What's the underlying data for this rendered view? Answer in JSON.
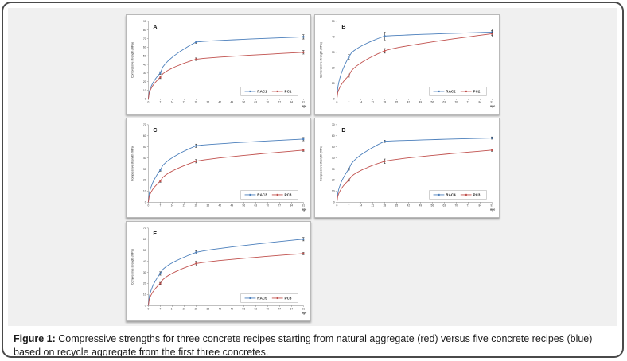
{
  "caption": {
    "label": "Figure 1:",
    "text": "Compressive strengths for three concrete recipes starting from natural aggregate (red) versus five concrete recipes (blue) based on recycle aggregate from the first three concretes."
  },
  "colors": {
    "rac_blue": "#4a7ebb",
    "pc_red": "#c0504d",
    "error_bar": "#222222",
    "axis": "#7f7f7f",
    "panel_bg": "#f0f0f0"
  },
  "chart_data": [
    {
      "id": "A",
      "type": "line",
      "title": "",
      "xlabel": "age",
      "ylabel": "Compressive strength (MPa)",
      "x": [
        0,
        7,
        28,
        91
      ],
      "xticks": [
        0,
        7,
        14,
        21,
        28,
        35,
        42,
        49,
        56,
        63,
        70,
        77,
        84,
        91
      ],
      "ylim": [
        0,
        90
      ],
      "ytick_step": 10,
      "grid": false,
      "legend_position": "bottom-right",
      "series": [
        {
          "name": "RAC1",
          "color": "#4a7ebb",
          "values": [
            0,
            30,
            66,
            72
          ],
          "errors": [
            0,
            1.5,
            1.5,
            2.5
          ]
        },
        {
          "name": "PC1",
          "color": "#c0504d",
          "values": [
            0,
            25,
            46,
            54
          ],
          "errors": [
            0,
            1.5,
            1.5,
            2
          ]
        }
      ]
    },
    {
      "id": "B",
      "type": "line",
      "title": "",
      "xlabel": "age",
      "ylabel": "Compressive strength (MPa)",
      "x": [
        0,
        7,
        28,
        91
      ],
      "xticks": [
        0,
        7,
        14,
        21,
        28,
        35,
        42,
        49,
        56,
        63,
        70,
        77,
        84,
        91
      ],
      "ylim": [
        0,
        50
      ],
      "ytick_step": 10,
      "grid": false,
      "legend_position": "bottom-right",
      "series": [
        {
          "name": "RAC2",
          "color": "#4a7ebb",
          "values": [
            0,
            27,
            40.5,
            43
          ],
          "errors": [
            0,
            1.5,
            2.5,
            2
          ]
        },
        {
          "name": "PC2",
          "color": "#c0504d",
          "values": [
            0,
            15,
            31,
            42
          ],
          "errors": [
            0,
            1,
            1.5,
            2
          ]
        }
      ]
    },
    {
      "id": "C",
      "type": "line",
      "title": "",
      "xlabel": "age",
      "ylabel": "Compressive strength (MPa)",
      "x": [
        0,
        7,
        28,
        91
      ],
      "xticks": [
        0,
        7,
        14,
        21,
        28,
        35,
        42,
        49,
        56,
        63,
        70,
        77,
        84,
        91
      ],
      "ylim": [
        0,
        70
      ],
      "ytick_step": 10,
      "grid": false,
      "legend_position": "bottom-right",
      "series": [
        {
          "name": "RAC3",
          "color": "#4a7ebb",
          "values": [
            0,
            29,
            51,
            57
          ],
          "errors": [
            0,
            1,
            1.5,
            1.5
          ]
        },
        {
          "name": "PC3",
          "color": "#c0504d",
          "values": [
            0,
            19,
            37,
            47
          ],
          "errors": [
            0,
            1,
            1.5,
            1
          ]
        }
      ]
    },
    {
      "id": "D",
      "type": "line",
      "title": "",
      "xlabel": "age",
      "ylabel": "Compressive strength (MPa)",
      "x": [
        0,
        7,
        28,
        91
      ],
      "xticks": [
        0,
        7,
        14,
        21,
        28,
        35,
        42,
        49,
        56,
        63,
        70,
        77,
        84,
        91
      ],
      "ylim": [
        0,
        70
      ],
      "ytick_step": 10,
      "grid": false,
      "legend_position": "bottom-right",
      "series": [
        {
          "name": "RAC4",
          "color": "#4a7ebb",
          "values": [
            0,
            30,
            55,
            58
          ],
          "errors": [
            0,
            1,
            1,
            1
          ]
        },
        {
          "name": "PC3",
          "color": "#c0504d",
          "values": [
            0,
            20,
            37,
            47
          ],
          "errors": [
            0,
            1,
            2,
            1
          ]
        }
      ]
    },
    {
      "id": "E",
      "type": "line",
      "title": "",
      "xlabel": "age",
      "ylabel": "Compressive strength (MPa)",
      "x": [
        0,
        7,
        28,
        91
      ],
      "xticks": [
        0,
        7,
        14,
        21,
        28,
        35,
        42,
        49,
        56,
        63,
        70,
        77,
        84,
        91
      ],
      "ylim": [
        0,
        70
      ],
      "ytick_step": 10,
      "grid": false,
      "legend_position": "bottom-right",
      "series": [
        {
          "name": "RAC5",
          "color": "#4a7ebb",
          "values": [
            0,
            29,
            48,
            60
          ],
          "errors": [
            0,
            1.5,
            1.5,
            1.5
          ]
        },
        {
          "name": "PC3",
          "color": "#c0504d",
          "values": [
            0,
            20,
            38,
            47
          ],
          "errors": [
            0,
            1,
            2,
            1
          ]
        }
      ]
    }
  ]
}
